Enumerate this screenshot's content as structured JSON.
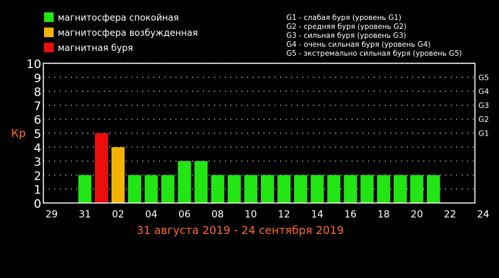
{
  "legend": [
    {
      "label": "магнитосфера спокойная",
      "color": "#22e614"
    },
    {
      "label": "магнитосфера возбужденная",
      "color": "#f4b300"
    },
    {
      "label": "магнитная буря",
      "color": "#ec0d0d"
    }
  ],
  "storm_scale": [
    "G1 - слабая буря (уровень G1)",
    "G2 - средняя буря (уровень G2)",
    "G3 - сильная буря (уровень G3)",
    "G4 - очень сильная буря (уровень G4)",
    "G5 - экстремально сильная буря (уровень G5)"
  ],
  "chart_data": {
    "type": "bar",
    "ylabel": "Кр",
    "xlabel": "31 августа 2019 - 24 сентября 2019",
    "ylim": [
      0,
      10
    ],
    "yticks": [
      0,
      1,
      2,
      3,
      4,
      5,
      6,
      7,
      8,
      9,
      10
    ],
    "xlim": [
      28.5,
      54.5
    ],
    "x_tick_labels": [
      {
        "x": 29,
        "label": "29"
      },
      {
        "x": 31,
        "label": "31"
      },
      {
        "x": 33,
        "label": "02"
      },
      {
        "x": 35,
        "label": "04"
      },
      {
        "x": 37,
        "label": "06"
      },
      {
        "x": 39,
        "label": "08"
      },
      {
        "x": 41,
        "label": "10"
      },
      {
        "x": 43,
        "label": "12"
      },
      {
        "x": 45,
        "label": "14"
      },
      {
        "x": 47,
        "label": "16"
      },
      {
        "x": 49,
        "label": "18"
      },
      {
        "x": 51,
        "label": "20"
      },
      {
        "x": 53,
        "label": "22"
      },
      {
        "x": 55,
        "label": "24"
      }
    ],
    "g_levels": [
      {
        "label": "G1",
        "kp": 5
      },
      {
        "label": "G2",
        "kp": 6
      },
      {
        "label": "G3",
        "kp": 7
      },
      {
        "label": "G4",
        "kp": 8
      },
      {
        "label": "G5",
        "kp": 9
      }
    ],
    "bars": [
      {
        "x": 31,
        "value": 2,
        "color": "#22e614"
      },
      {
        "x": 32,
        "value": 5,
        "color": "#ec0d0d"
      },
      {
        "x": 33,
        "value": 4,
        "color": "#f4b300"
      },
      {
        "x": 34,
        "value": 2,
        "color": "#22e614"
      },
      {
        "x": 35,
        "value": 2,
        "color": "#22e614"
      },
      {
        "x": 36,
        "value": 2,
        "color": "#22e614"
      },
      {
        "x": 37,
        "value": 3,
        "color": "#22e614"
      },
      {
        "x": 38,
        "value": 3,
        "color": "#22e614"
      },
      {
        "x": 39,
        "value": 2,
        "color": "#22e614"
      },
      {
        "x": 40,
        "value": 2,
        "color": "#22e614"
      },
      {
        "x": 41,
        "value": 2,
        "color": "#22e614"
      },
      {
        "x": 42,
        "value": 2,
        "color": "#22e614"
      },
      {
        "x": 43,
        "value": 2,
        "color": "#22e614"
      },
      {
        "x": 44,
        "value": 2,
        "color": "#22e614"
      },
      {
        "x": 45,
        "value": 2,
        "color": "#22e614"
      },
      {
        "x": 46,
        "value": 2,
        "color": "#22e614"
      },
      {
        "x": 47,
        "value": 2,
        "color": "#22e614"
      },
      {
        "x": 48,
        "value": 2,
        "color": "#22e614"
      },
      {
        "x": 49,
        "value": 2,
        "color": "#22e614"
      },
      {
        "x": 50,
        "value": 2,
        "color": "#22e614"
      },
      {
        "x": 51,
        "value": 2,
        "color": "#22e614"
      },
      {
        "x": 52,
        "value": 2,
        "color": "#22e614"
      }
    ],
    "grid": true,
    "text_color": "#ffffff",
    "label_color": "#ff6a2a"
  }
}
